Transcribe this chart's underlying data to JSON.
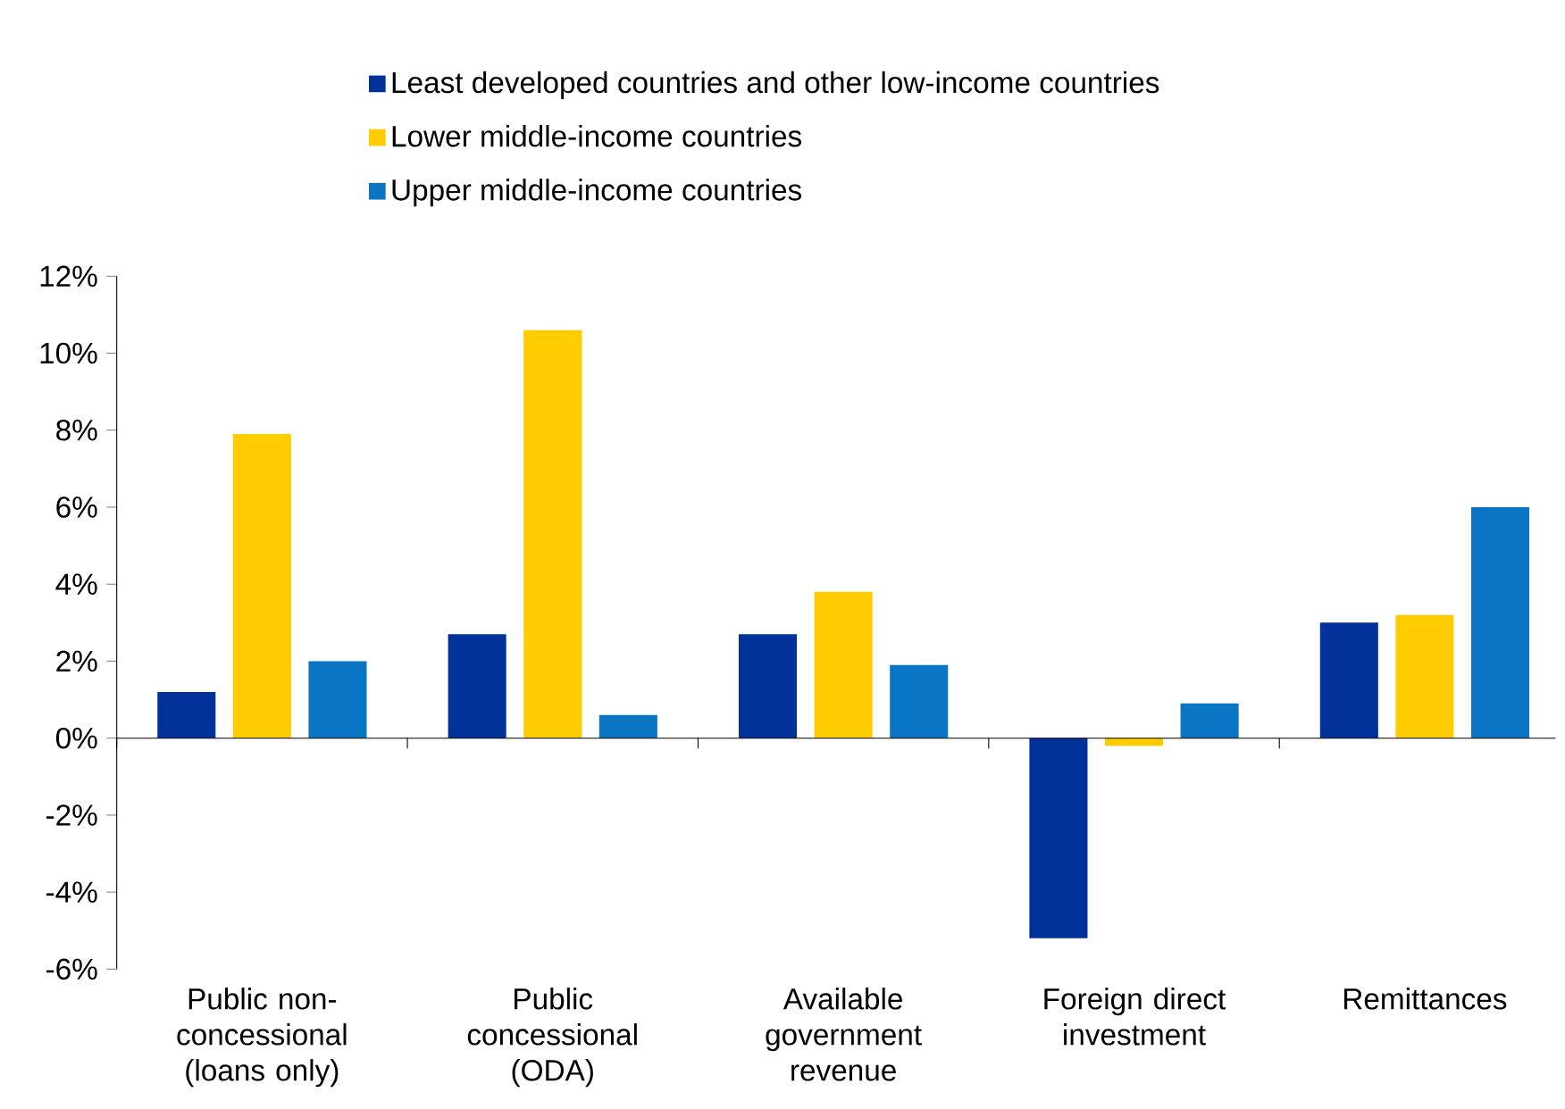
{
  "chart_data": {
    "type": "bar",
    "categories": [
      "Public non-concessional (loans only)",
      "Public concessional (ODA)",
      "Available government revenue",
      "Foreign direct investment",
      "Remittances"
    ],
    "series": [
      {
        "name": "Least developed countries and other low-income countries",
        "color": "#003299",
        "values": [
          1.2,
          2.7,
          2.7,
          -5.2,
          3.0
        ]
      },
      {
        "name": "Lower middle-income countries",
        "color": "#ffcc00",
        "values": [
          7.9,
          10.6,
          3.8,
          -0.2,
          3.2
        ]
      },
      {
        "name": "Upper middle-income countries",
        "color": "#0a75c2",
        "values": [
          2.0,
          0.6,
          1.9,
          0.9,
          6.0
        ]
      }
    ],
    "ylim": [
      -6,
      12
    ],
    "yticks": [
      {
        "value": -6,
        "label": "-6%"
      },
      {
        "value": -4,
        "label": "-4%"
      },
      {
        "value": -2,
        "label": "-2%"
      },
      {
        "value": 0,
        "label": "0%"
      },
      {
        "value": 2,
        "label": "2%"
      },
      {
        "value": 4,
        "label": "4%"
      },
      {
        "value": 6,
        "label": "6%"
      },
      {
        "value": 8,
        "label": "8%"
      },
      {
        "value": 10,
        "label": "10%"
      },
      {
        "value": 12,
        "label": "12%"
      }
    ],
    "legend": "top"
  }
}
